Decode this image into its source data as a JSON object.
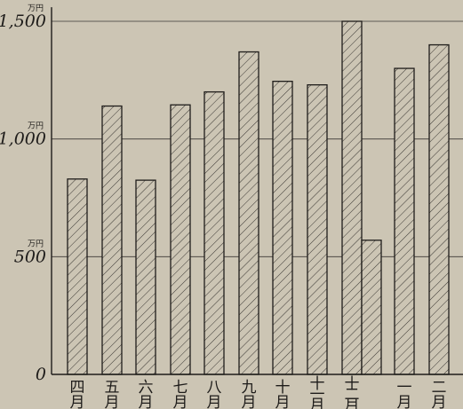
{
  "colors": {
    "background": "#ccc5b4",
    "ink": "#1e1c1a",
    "hatch": "#3a3733"
  },
  "chart_data": {
    "type": "bar",
    "title": "",
    "xlabel": "",
    "ylabel": "",
    "ylim": [
      0,
      1560
    ],
    "y_ticks": [
      {
        "value": 0,
        "label": "0",
        "unit": ""
      },
      {
        "value": 500,
        "label": "500",
        "unit": "万円"
      },
      {
        "value": 1000,
        "label": "1,000",
        "unit": "万円"
      },
      {
        "value": 1500,
        "label": "1,500",
        "unit": "万円"
      }
    ],
    "grid": true,
    "bar_fill": "hatched",
    "categories": [
      "四月",
      "五月",
      "六月",
      "七月",
      "八月",
      "九月",
      "十月",
      "十一月",
      "十二月",
      "",
      "一月",
      "二月"
    ],
    "category_labels": [
      [
        "四",
        "月"
      ],
      [
        "五",
        "月"
      ],
      [
        "六",
        "月"
      ],
      [
        "七",
        "月"
      ],
      [
        "八",
        "月"
      ],
      [
        "九",
        "月"
      ],
      [
        "十",
        "月"
      ],
      [
        "十",
        "一",
        "月"
      ],
      [
        "十",
        "二",
        "月"
      ],
      [
        "",
        ""
      ],
      [
        "一",
        "月"
      ],
      [
        "二",
        "月"
      ]
    ],
    "values": [
      830,
      1140,
      825,
      1145,
      1200,
      1370,
      1245,
      1230,
      1500,
      570,
      1300,
      1400
    ]
  }
}
